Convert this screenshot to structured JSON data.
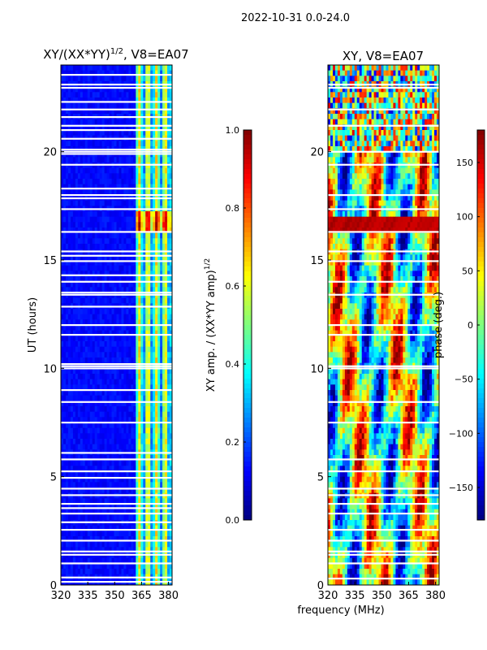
{
  "suptitle": "2022-10-31 0.0-24.0",
  "colors": {
    "jet": [
      "#00007f",
      "#0000ff",
      "#007fff",
      "#00ffff",
      "#7fff7f",
      "#ffff00",
      "#ff7f00",
      "#ff0000",
      "#7f0000"
    ],
    "gap": "#ffffff"
  },
  "chart_data": [
    {
      "type": "heatmap",
      "title_main": "XY/(XX*YY)",
      "title_exp": "1/2",
      "title_tail": ", V8=EA07",
      "xlim": [
        320,
        382
      ],
      "ylim": [
        0,
        24
      ],
      "xticks": [
        "320",
        "335",
        "350",
        "365",
        "380"
      ],
      "xtick_values": [
        320,
        335,
        350,
        365,
        380
      ],
      "yticks": [
        "0",
        "5",
        "10",
        "15",
        "20"
      ],
      "ytick_values": [
        0,
        5,
        10,
        15,
        20
      ],
      "ylabel": "UT (hours)",
      "xlabel": "",
      "value_range": [
        0.0,
        1.0
      ],
      "high_band_mhz": [
        362,
        382
      ],
      "low_band_value": 0.1,
      "high_band_value": 0.45,
      "flagged_hours": [
        0.15,
        0.35,
        1.0,
        1.4,
        1.55,
        2.05,
        2.55,
        2.9,
        3.3,
        3.55,
        3.75,
        4.15,
        4.45,
        4.95,
        5.25,
        5.8,
        6.1,
        7.5,
        8.45,
        9.0,
        10.0,
        10.1,
        10.2,
        11.55,
        12.0,
        12.85,
        13.4,
        13.5,
        14.0,
        14.3,
        14.95,
        15.2,
        15.4,
        16.3,
        17.35,
        17.85,
        18.0,
        18.3,
        19.4,
        19.9,
        20.0,
        20.1,
        20.6,
        21.0,
        21.2,
        21.6,
        21.95,
        22.3,
        22.95,
        23.1,
        23.55
      ]
    },
    {
      "type": "heatmap",
      "title": "XY, V8=EA07",
      "xlim": [
        320,
        382
      ],
      "ylim": [
        0,
        24
      ],
      "xticks": [
        "320",
        "335",
        "350",
        "365",
        "380"
      ],
      "xtick_values": [
        320,
        335,
        350,
        365,
        380
      ],
      "yticks": [
        "0",
        "5",
        "10",
        "15",
        "20"
      ],
      "ytick_values": [
        0,
        5,
        10,
        15,
        20
      ],
      "xlabel": "frequency (MHz)",
      "ylabel": "",
      "value_range": [
        -180,
        180
      ],
      "strong_band_hours": [
        16.3,
        16.9
      ],
      "strong_band_value": 150,
      "flagged_hours": [
        0.3,
        1.0,
        1.4,
        1.55,
        2.05,
        2.55,
        3.3,
        3.75,
        4.15,
        4.45,
        5.25,
        5.8,
        7.5,
        8.45,
        10.0,
        10.1,
        11.55,
        12.0,
        13.4,
        14.0,
        14.95,
        15.4,
        16.3,
        17.35,
        18.0,
        19.4,
        20.0,
        21.2,
        21.95,
        22.95,
        23.1
      ]
    }
  ],
  "colorbars": [
    {
      "label_main": "XY amp. / (XX*YY amp)",
      "label_exp": "1/2",
      "range": [
        0.0,
        1.0
      ],
      "ticks": [
        "0.0",
        "0.2",
        "0.4",
        "0.6",
        "0.8",
        "1.0"
      ],
      "tick_values": [
        0.0,
        0.2,
        0.4,
        0.6,
        0.8,
        1.0
      ]
    },
    {
      "label": "phase (deg.)",
      "range": [
        -180,
        180
      ],
      "ticks": [
        "−150",
        "−100",
        "−50",
        "0",
        "50",
        "100",
        "150"
      ],
      "tick_values": [
        -150,
        -100,
        -50,
        0,
        50,
        100,
        150
      ]
    }
  ]
}
